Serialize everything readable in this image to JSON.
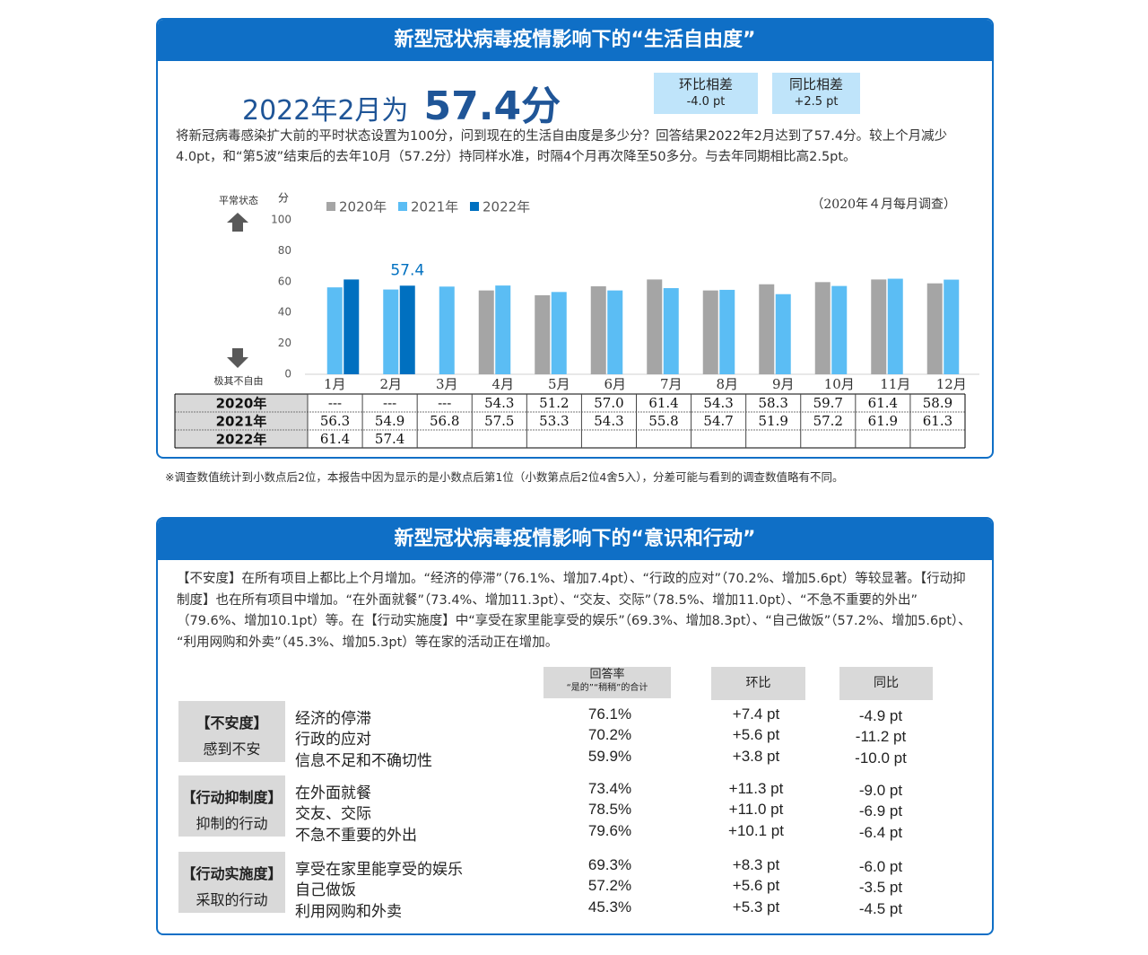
{
  "panel1": {
    "title": "新型冠状病毒疫情影响下的“生活自由度”",
    "headline": "2022年2月为",
    "headline_value": "57.4分",
    "badges": [
      {
        "label": "环比相差",
        "value": "-4.0 pt"
      },
      {
        "label": "同比相差",
        "value": "+2.5 pt"
      }
    ],
    "description": "将新冠病毒感染扩大前的平时状态设置为100分，问到现在的生活自由度是多少分？回答结果2022年2月达到了57.4分。较上个月减少4.0pt，和“第5波”结束后的去年10月（57.2分）持同样水准，时隔4个月再次降至50多分。与去年同期相比高2.5pt。",
    "footnote": "※调查数值统计到小数点后2位，本报告中因为显示的是小数点后第1位（小数第点后2位4舍5入），分差可能与看到的调查数值略有不同。"
  },
  "chart_data": {
    "type": "bar",
    "y_unit": "分",
    "top_label": "平常状态",
    "bottom_label": "极其不自由",
    "note": "（2020年４月每月调查）",
    "categories": [
      "1月",
      "2月",
      "3月",
      "4月",
      "5月",
      "6月",
      "7月",
      "8月",
      "9月",
      "10月",
      "11月",
      "12月"
    ],
    "series": [
      {
        "name": "2020年",
        "color": "#a5a5a5",
        "values": [
          null,
          null,
          null,
          54.3,
          51.2,
          57.0,
          61.4,
          54.3,
          58.3,
          59.7,
          61.4,
          58.9
        ],
        "value_labels": [
          "---",
          "---",
          "---",
          "54.3",
          "51.2",
          "57.0",
          "61.4",
          "54.3",
          "58.3",
          "59.7",
          "61.4",
          "58.9"
        ]
      },
      {
        "name": "2021年",
        "color": "#5bbdf4",
        "values": [
          56.3,
          54.9,
          56.8,
          57.5,
          53.3,
          54.3,
          55.8,
          54.7,
          51.9,
          57.2,
          61.9,
          61.3
        ],
        "value_labels": [
          "56.3",
          "54.9",
          "56.8",
          "57.5",
          "53.3",
          "54.3",
          "55.8",
          "54.7",
          "51.9",
          "57.2",
          "61.9",
          "61.3"
        ]
      },
      {
        "name": "2022年",
        "color": "#0070c0",
        "values": [
          61.4,
          57.4,
          null,
          null,
          null,
          null,
          null,
          null,
          null,
          null,
          null,
          null
        ],
        "value_labels": [
          "61.4",
          "57.4",
          null,
          null,
          null,
          null,
          null,
          null,
          null,
          null,
          null,
          null
        ]
      }
    ],
    "annotation": {
      "text": "57.4",
      "series": "2022年",
      "category": "2月"
    },
    "ylim": [
      0,
      100
    ],
    "yticks": [
      0,
      20,
      40,
      60,
      80,
      100
    ],
    "legend": "top-left"
  },
  "panel2": {
    "title": "新型冠状病毒疫情影响下的“意识和行动”",
    "intro": "【不安度】在所有项目上都比上个月增加。“经济的停滞”（76.1%、增加7.4pt）、“行政的应对”（70.2%、增加5.6pt）等较显著。【行动抑制度】也在所有项目中增加。“在外面就餐”（73.4%、增加11.3pt）、“交友、交际”（78.5%、增加11.0pt）、“不急不重要的外出”（79.6%、增加10.1pt）等。在【行动实施度】中“享受在家里能享受的娱乐”（69.3%、增加8.3pt）、“自己做饭”（57.2%、增加5.6pt）、“利用网购和外卖”（45.3%、增加5.3pt）等在家的活动正在增加。",
    "headers": {
      "rate": "回答率",
      "rate_sub": "“是的”“稍稍”的合计",
      "mom": "环比",
      "yoy": "同比"
    },
    "groups": [
      {
        "label": "【不安度】",
        "sublabel": "感到不安",
        "items": [
          {
            "name": "经济的停滞",
            "rate": "76.1%",
            "mom": "+7.4 pt",
            "yoy": "-4.9 pt"
          },
          {
            "name": "行政的应对",
            "rate": "70.2%",
            "mom": "+5.6 pt",
            "yoy": "-11.2 pt"
          },
          {
            "name": "信息不足和不确切性",
            "rate": "59.9%",
            "mom": "+3.8 pt",
            "yoy": "-10.0 pt"
          }
        ]
      },
      {
        "label": "【行动抑制度】",
        "sublabel": "抑制的行动",
        "items": [
          {
            "name": "在外面就餐",
            "rate": "73.4%",
            "mom": "+11.3 pt",
            "yoy": "-9.0 pt"
          },
          {
            "name": "交友、交际",
            "rate": "78.5%",
            "mom": "+11.0 pt",
            "yoy": "-6.9 pt"
          },
          {
            "name": "不急不重要的外出",
            "rate": "79.6%",
            "mom": "+10.1 pt",
            "yoy": "-6.4 pt"
          }
        ]
      },
      {
        "label": "【行动实施度】",
        "sublabel": "采取的行动",
        "items": [
          {
            "name": "享受在家里能享受的娱乐",
            "rate": "69.3%",
            "mom": "+8.3 pt",
            "yoy": "-6.0 pt"
          },
          {
            "name": "自己做饭",
            "rate": "57.2%",
            "mom": "+5.6 pt",
            "yoy": "-3.5 pt"
          },
          {
            "name": "利用网购和外卖",
            "rate": "45.3%",
            "mom": "+5.3 pt",
            "yoy": "-4.5 pt"
          }
        ]
      }
    ]
  }
}
